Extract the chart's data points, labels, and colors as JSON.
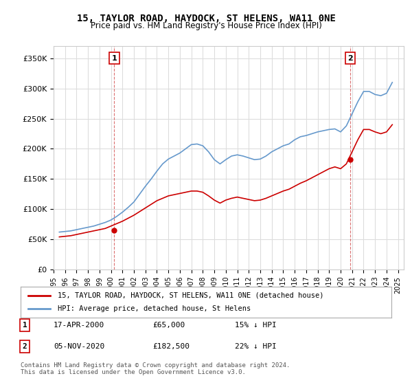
{
  "title": "15, TAYLOR ROAD, HAYDOCK, ST HELENS, WA11 0NE",
  "subtitle": "Price paid vs. HM Land Registry's House Price Index (HPI)",
  "ylabel_ticks": [
    "£0",
    "£50K",
    "£100K",
    "£150K",
    "£200K",
    "£250K",
    "£300K",
    "£350K"
  ],
  "ytick_values": [
    0,
    50000,
    100000,
    150000,
    200000,
    250000,
    300000,
    350000
  ],
  "ylim": [
    0,
    370000
  ],
  "xlim_start": 1995.0,
  "xlim_end": 2025.5,
  "xtick_years": [
    1995,
    1996,
    1997,
    1998,
    1999,
    2000,
    2001,
    2002,
    2003,
    2004,
    2005,
    2006,
    2007,
    2008,
    2009,
    2010,
    2011,
    2012,
    2013,
    2014,
    2015,
    2016,
    2017,
    2018,
    2019,
    2020,
    2021,
    2022,
    2023,
    2024,
    2025
  ],
  "hpi_color": "#6699cc",
  "price_color": "#cc0000",
  "annotation_color": "#cc0000",
  "dashed_line_color": "#cc3333",
  "transaction1": {
    "date_num": 2000.29,
    "price": 65000,
    "label": "1",
    "date_str": "17-APR-2000",
    "price_str": "£65,000",
    "hpi_str": "15% ↓ HPI"
  },
  "transaction2": {
    "date_num": 2020.84,
    "price": 182500,
    "label": "2",
    "date_str": "05-NOV-2020",
    "price_str": "£182,500",
    "hpi_str": "22% ↓ HPI"
  },
  "legend_line1": "15, TAYLOR ROAD, HAYDOCK, ST HELENS, WA11 0NE (detached house)",
  "legend_line2": "HPI: Average price, detached house, St Helens",
  "footer": "Contains HM Land Registry data © Crown copyright and database right 2024.\nThis data is licensed under the Open Government Licence v3.0.",
  "background_color": "#ffffff",
  "plot_bg_color": "#ffffff",
  "grid_color": "#dddddd",
  "hpi_data": {
    "years": [
      1995.5,
      1996.0,
      1996.5,
      1997.0,
      1997.5,
      1998.0,
      1998.5,
      1999.0,
      1999.5,
      2000.0,
      2000.5,
      2001.0,
      2001.5,
      2002.0,
      2002.5,
      2003.0,
      2003.5,
      2004.0,
      2004.5,
      2005.0,
      2005.5,
      2006.0,
      2006.5,
      2007.0,
      2007.5,
      2008.0,
      2008.5,
      2009.0,
      2009.5,
      2010.0,
      2010.5,
      2011.0,
      2011.5,
      2012.0,
      2012.5,
      2013.0,
      2013.5,
      2014.0,
      2014.5,
      2015.0,
      2015.5,
      2016.0,
      2016.5,
      2017.0,
      2017.5,
      2018.0,
      2018.5,
      2019.0,
      2019.5,
      2020.0,
      2020.5,
      2021.0,
      2021.5,
      2022.0,
      2022.5,
      2023.0,
      2023.5,
      2024.0,
      2024.5
    ],
    "values": [
      62000,
      63000,
      64000,
      66000,
      68000,
      70000,
      72000,
      75000,
      78000,
      82000,
      88000,
      95000,
      103000,
      112000,
      125000,
      138000,
      150000,
      163000,
      175000,
      183000,
      188000,
      193000,
      200000,
      207000,
      208000,
      205000,
      195000,
      182000,
      175000,
      182000,
      188000,
      190000,
      188000,
      185000,
      182000,
      183000,
      188000,
      195000,
      200000,
      205000,
      208000,
      215000,
      220000,
      222000,
      225000,
      228000,
      230000,
      232000,
      233000,
      228000,
      238000,
      258000,
      278000,
      295000,
      295000,
      290000,
      288000,
      292000,
      310000
    ]
  },
  "price_hpi_data": {
    "years": [
      1995.5,
      1996.0,
      1996.5,
      1997.0,
      1997.5,
      1998.0,
      1998.5,
      1999.0,
      1999.5,
      2000.0,
      2000.5,
      2001.0,
      2001.5,
      2002.0,
      2002.5,
      2003.0,
      2003.5,
      2004.0,
      2004.5,
      2005.0,
      2005.5,
      2006.0,
      2006.5,
      2007.0,
      2007.5,
      2008.0,
      2008.5,
      2009.0,
      2009.5,
      2010.0,
      2010.5,
      2011.0,
      2011.5,
      2012.0,
      2012.5,
      2013.0,
      2013.5,
      2014.0,
      2014.5,
      2015.0,
      2015.5,
      2016.0,
      2016.5,
      2017.0,
      2017.5,
      2018.0,
      2018.5,
      2019.0,
      2019.5,
      2020.0,
      2020.5,
      2021.0,
      2021.5,
      2022.0,
      2022.5,
      2023.0,
      2023.5,
      2024.0,
      2024.5
    ],
    "values": [
      54000,
      55000,
      56000,
      58000,
      60000,
      62000,
      64000,
      66000,
      68000,
      72000,
      76000,
      80000,
      85000,
      90000,
      96000,
      102000,
      108000,
      114000,
      118000,
      122000,
      124000,
      126000,
      128000,
      130000,
      130000,
      128000,
      122000,
      115000,
      110000,
      115000,
      118000,
      120000,
      118000,
      116000,
      114000,
      115000,
      118000,
      122000,
      126000,
      130000,
      133000,
      138000,
      143000,
      147000,
      152000,
      157000,
      162000,
      167000,
      170000,
      167000,
      175000,
      195000,
      215000,
      232000,
      232000,
      228000,
      225000,
      228000,
      240000
    ]
  }
}
